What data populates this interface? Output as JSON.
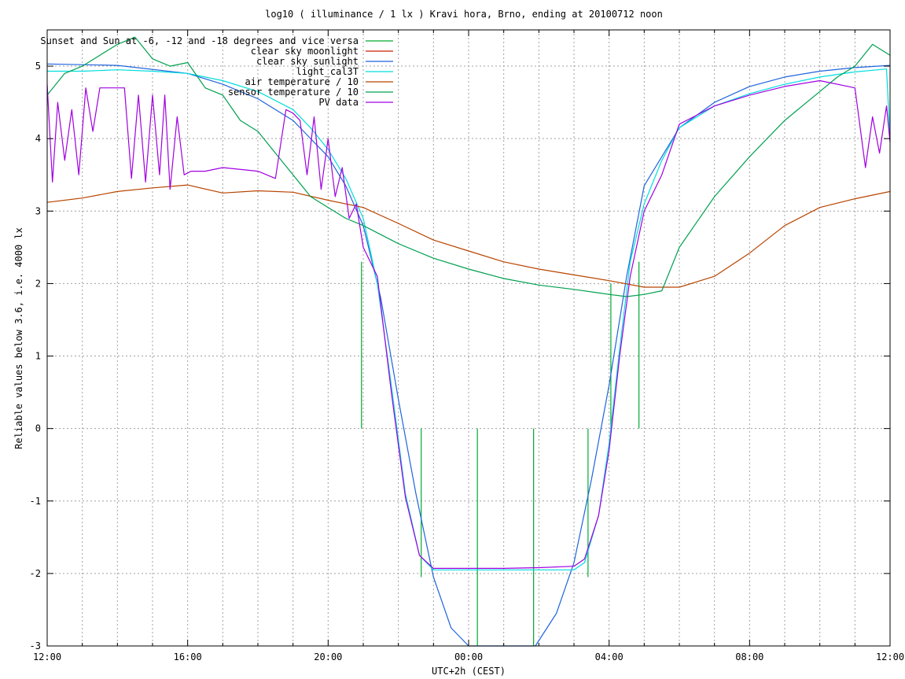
{
  "chart_data": {
    "type": "line",
    "title": "log10 ( illuminance / 1 lx ) Kravi hora, Brno, ending at 20100712 noon",
    "xlabel": "UTC+2h (CEST)",
    "ylabel": "Reliable values below 3.6, i.e. 4000 lx",
    "x_unit": "hours since 12:00",
    "xlim": [
      0,
      24
    ],
    "ylim": [
      -3,
      5.5
    ],
    "grid": true,
    "legend_position": "top-left",
    "x_ticks": [
      {
        "value": 0,
        "label": "12:00"
      },
      {
        "value": 4,
        "label": "16:00"
      },
      {
        "value": 8,
        "label": "20:00"
      },
      {
        "value": 12,
        "label": "00:00"
      },
      {
        "value": 16,
        "label": "04:00"
      },
      {
        "value": 20,
        "label": "08:00"
      },
      {
        "value": 24,
        "label": "12:00"
      }
    ],
    "y_ticks": [
      {
        "value": -3,
        "label": "-3"
      },
      {
        "value": -2,
        "label": "-2"
      },
      {
        "value": -1,
        "label": "-1"
      },
      {
        "value": 0,
        "label": "0"
      },
      {
        "value": 1,
        "label": "1"
      },
      {
        "value": 2,
        "label": "2"
      },
      {
        "value": 3,
        "label": "3"
      },
      {
        "value": 4,
        "label": "4"
      },
      {
        "value": 5,
        "label": "5"
      }
    ],
    "series": [
      {
        "name": "Sunset and Sun at -6, -12 and -18 degrees and vice versa",
        "color": "#00aa33",
        "style": "vertical-markers",
        "x": [
          8.95,
          9.65,
          10.65,
          12.25,
          13.85,
          15.4,
          16.05,
          16.85
        ],
        "bottoms": [
          0,
          0,
          -2.05,
          -3,
          -3,
          -2.05,
          0,
          0
        ],
        "tops": [
          2.3,
          0,
          0,
          0,
          0,
          0,
          2.0,
          2.3
        ]
      },
      {
        "name": "clear sky moonlight",
        "color": "#cc2200",
        "x": [],
        "y": []
      },
      {
        "name": "clear sky sunlight",
        "color": "#1e64dc",
        "x": [
          0,
          2,
          4,
          5,
          6,
          7,
          8,
          8.5,
          9,
          9.5,
          10,
          10.5,
          11,
          11.5,
          12,
          12.3,
          13.5,
          13.9,
          14.5,
          15,
          15.5,
          16,
          16.5,
          17,
          18,
          19,
          20,
          21,
          22,
          23,
          24
        ],
        "y": [
          5.03,
          5.01,
          4.9,
          4.75,
          4.55,
          4.25,
          3.75,
          3.35,
          2.8,
          1.8,
          0.4,
          -0.9,
          -2.05,
          -2.75,
          -3.0,
          -3.1,
          -3.1,
          -3.0,
          -2.55,
          -1.85,
          -0.7,
          0.6,
          2.1,
          3.35,
          4.15,
          4.5,
          4.72,
          4.85,
          4.93,
          4.98,
          5.01
        ]
      },
      {
        "name": "light_cal3T",
        "color": "#00dddd",
        "x": [
          0,
          1,
          2,
          3,
          4,
          5,
          6,
          7,
          7.5,
          8,
          8.5,
          9,
          9.4,
          9.8,
          10.2,
          10.6,
          11,
          12,
          13,
          14,
          15,
          15.3,
          15.7,
          16,
          16.3,
          16.6,
          17,
          17.5,
          18,
          19,
          20,
          21,
          22,
          23,
          23.9,
          24
        ],
        "y": [
          4.93,
          4.93,
          4.95,
          4.93,
          4.9,
          4.8,
          4.65,
          4.4,
          4.15,
          3.85,
          3.45,
          2.9,
          2.0,
          0.6,
          -0.9,
          -1.75,
          -1.95,
          -1.95,
          -1.95,
          -1.95,
          -1.95,
          -1.85,
          -1.2,
          -0.2,
          1.1,
          2.3,
          3.1,
          3.7,
          4.15,
          4.45,
          4.62,
          4.75,
          4.85,
          4.92,
          4.96,
          4.0
        ]
      },
      {
        "name": "air temperature / 10",
        "color": "#b84400",
        "x": [
          0,
          1,
          2,
          3,
          4,
          5,
          6,
          7,
          8,
          9,
          10,
          11,
          12,
          13,
          14,
          15,
          16,
          17,
          18,
          19,
          20,
          21,
          22,
          23,
          24
        ],
        "y": [
          3.12,
          3.18,
          3.27,
          3.32,
          3.36,
          3.25,
          3.28,
          3.26,
          3.15,
          3.05,
          2.83,
          2.6,
          2.45,
          2.3,
          2.2,
          2.12,
          2.04,
          1.95,
          1.95,
          2.1,
          2.42,
          2.8,
          3.05,
          3.17,
          3.27
        ]
      },
      {
        "name": "sensor temperature / 10",
        "color": "#00a050",
        "x": [
          0,
          0.5,
          1,
          1.5,
          2,
          2.5,
          3,
          3.5,
          4,
          4.5,
          5,
          5.5,
          6,
          6.5,
          7,
          7.5,
          8,
          8.5,
          9,
          10,
          11,
          12,
          13,
          14,
          15,
          16,
          16.5,
          17,
          17.5,
          18,
          19,
          20,
          21,
          22,
          22.5,
          23,
          23.5,
          24
        ],
        "y": [
          4.6,
          4.9,
          5.0,
          5.15,
          5.3,
          5.4,
          5.1,
          5.0,
          5.05,
          4.7,
          4.6,
          4.25,
          4.1,
          3.8,
          3.5,
          3.2,
          3.05,
          2.9,
          2.8,
          2.55,
          2.35,
          2.2,
          2.07,
          1.98,
          1.92,
          1.85,
          1.82,
          1.85,
          1.9,
          2.5,
          3.2,
          3.75,
          4.25,
          4.65,
          4.85,
          5.0,
          5.3,
          5.15
        ]
      },
      {
        "name": "PV data",
        "color": "#a000e0",
        "x": [
          0,
          0.15,
          0.3,
          0.5,
          0.7,
          0.9,
          1.1,
          1.3,
          1.5,
          1.8,
          2.2,
          2.4,
          2.6,
          2.8,
          3.0,
          3.2,
          3.35,
          3.5,
          3.7,
          3.9,
          4.1,
          4.5,
          5,
          6,
          6.5,
          6.8,
          7.0,
          7.2,
          7.4,
          7.6,
          7.8,
          8.0,
          8.2,
          8.4,
          8.6,
          8.8,
          9.0,
          9.4,
          9.8,
          10.2,
          10.6,
          11,
          12,
          13,
          14,
          15,
          15.3,
          15.7,
          16,
          16.3,
          16.6,
          17,
          17.5,
          18,
          19,
          20,
          21,
          22,
          23,
          23.3,
          23.5,
          23.7,
          23.9,
          24
        ],
        "y": [
          4.75,
          3.4,
          4.5,
          3.7,
          4.4,
          3.5,
          4.7,
          4.1,
          4.7,
          4.7,
          4.7,
          3.45,
          4.6,
          3.4,
          4.6,
          3.5,
          4.6,
          3.3,
          4.3,
          3.5,
          3.55,
          3.55,
          3.6,
          3.55,
          3.45,
          4.4,
          4.35,
          4.25,
          3.5,
          4.3,
          3.3,
          4.0,
          3.2,
          3.6,
          2.9,
          3.1,
          2.5,
          2.1,
          0.5,
          -0.95,
          -1.75,
          -1.93,
          -1.93,
          -1.93,
          -1.92,
          -1.9,
          -1.8,
          -1.2,
          -0.3,
          1.0,
          2.1,
          3.0,
          3.5,
          4.2,
          4.45,
          4.6,
          4.72,
          4.8,
          4.7,
          3.6,
          4.3,
          3.8,
          4.45,
          3.95
        ]
      }
    ]
  }
}
